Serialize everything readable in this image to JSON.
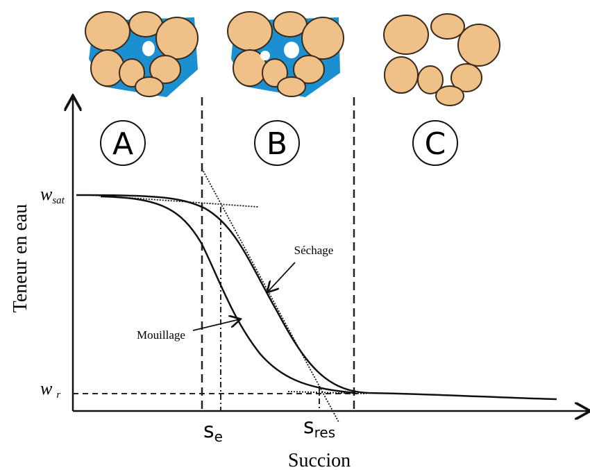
{
  "zones": [
    {
      "label": "A"
    },
    {
      "label": "B"
    },
    {
      "label": "C"
    }
  ],
  "y_axis": {
    "title": "Teneur en eau",
    "w_sat": {
      "main": "w",
      "sub": "sat"
    },
    "w_r": {
      "main": "w",
      "sub": "r"
    }
  },
  "x_axis": {
    "title": "Succion",
    "s_e": {
      "main": "s",
      "sub": "e"
    },
    "s_res": {
      "main": "s",
      "sub": "res"
    }
  },
  "curves": {
    "drying": "Séchage",
    "wetting": "Mouillage"
  }
}
